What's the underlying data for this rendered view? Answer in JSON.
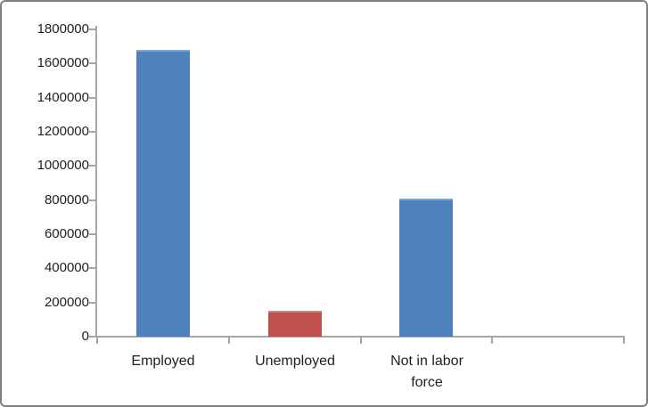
{
  "chart": {
    "title": "",
    "xlabel": "",
    "ylabel": "",
    "legend_visible": false,
    "grid_visible": false
  },
  "chart_data": {
    "type": "bar",
    "categories": [
      "Employed",
      "Unemployed",
      "Not in labor\nforce",
      ""
    ],
    "values": [
      1680000,
      150000,
      810000,
      null
    ],
    "bar_colors": [
      "#4f81bd",
      "#c0504d",
      "#4f81bd",
      null
    ],
    "title": "",
    "xlabel": "",
    "ylabel": "",
    "ylim": [
      0,
      1800000
    ],
    "ytick_step": 200000,
    "ytick_labels": [
      "1800000",
      "1600000",
      "1400000",
      "1200000",
      "1000000",
      "800000",
      "600000",
      "400000",
      "200000",
      "0"
    ],
    "legend": false,
    "grid": false
  },
  "colors": {
    "bar_blue": "#4f81bd",
    "bar_red": "#c0504d",
    "axis": "#a6a6a6",
    "text": "#1f1f1f",
    "frame_border": "#7f7f7f",
    "background": "#ffffff"
  }
}
